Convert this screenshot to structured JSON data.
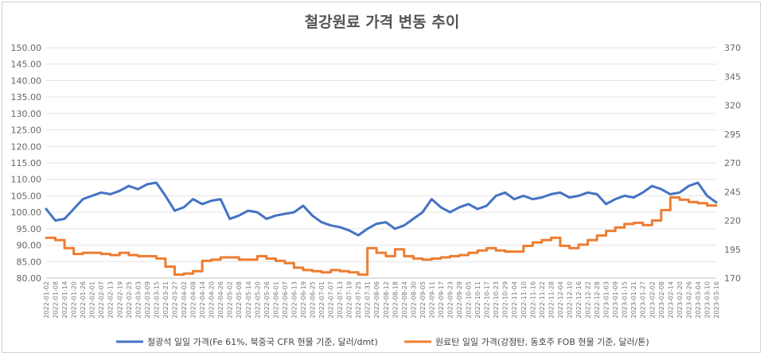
{
  "chart_data": {
    "type": "line",
    "title": "철강원료 가격 변동 추이",
    "y_left": {
      "min": 80,
      "max": 150,
      "step": 5,
      "ticks": [
        "80.00",
        "85.00",
        "90.00",
        "95.00",
        "100.00",
        "105.00",
        "110.00",
        "115.00",
        "120.00",
        "125.00",
        "130.00",
        "135.00",
        "140.00",
        "145.00",
        "150.00"
      ]
    },
    "y_right": {
      "min": 170,
      "max": 370,
      "step": 25,
      "ticks": [
        "170",
        "195",
        "220",
        "245",
        "270",
        "295",
        "320",
        "345",
        "370"
      ]
    },
    "x": [
      "2022-01-02",
      "2022-01-08",
      "2022-01-14",
      "2022-01-20",
      "2022-01-26",
      "2022-02-01",
      "2022-02-07",
      "2022-02-13",
      "2022-02-19",
      "2022-02-25",
      "2022-03-03",
      "2022-03-09",
      "2022-03-15",
      "2022-03-21",
      "2022-03-27",
      "2022-04-02",
      "2022-04-08",
      "2022-04-14",
      "2022-04-20",
      "2022-04-26",
      "2022-05-02",
      "2022-05-08",
      "2022-05-14",
      "2022-05-20",
      "2022-05-26",
      "2022-06-01",
      "2022-06-07",
      "2022-06-13",
      "2022-06-19",
      "2022-06-25",
      "2022-07-01",
      "2022-07-07",
      "2022-07-13",
      "2022-07-19",
      "2022-07-25",
      "2022-07-31",
      "2022-08-06",
      "2022-08-12",
      "2022-08-18",
      "2022-08-24",
      "2022-08-30",
      "2022-09-05",
      "2022-09-11",
      "2022-09-17",
      "2022-09-23",
      "2022-09-29",
      "2022-10-05",
      "2022-10-11",
      "2022-10-17",
      "2022-10-23",
      "2022-10-29",
      "2022-11-04",
      "2022-11-10",
      "2022-11-16",
      "2022-11-22",
      "2022-11-28",
      "2022-12-04",
      "2022-12-10",
      "2022-12-16",
      "2022-12-22",
      "2022-12-28",
      "2023-01-03",
      "2023-01-09",
      "2023-01-15",
      "2023-01-21",
      "2023-01-27",
      "2023-02-02",
      "2023-02-08",
      "2023-02-14",
      "2023-02-20",
      "2023-02-26",
      "2023-03-04",
      "2023-03-10",
      "2023-03-16"
    ],
    "series": [
      {
        "name": "철광석 일일 가격(Fe 61%, 북중국 CFR 현물 기준, 달러/dmt)",
        "axis": "left",
        "color": "#4472C4",
        "values": [
          101,
          97.5,
          98,
          101,
          104,
          105,
          106,
          105.5,
          106.5,
          108,
          107,
          108.5,
          109,
          105,
          100.5,
          101.5,
          104,
          102.5,
          103.5,
          104,
          98,
          99,
          100.5,
          100,
          98,
          99,
          99.5,
          100,
          102,
          99,
          97,
          96,
          95.5,
          94.5,
          93,
          95,
          96.5,
          97,
          95,
          96,
          98,
          100,
          104,
          101.5,
          100,
          101.5,
          102.5,
          101,
          102,
          105,
          106,
          104,
          105,
          104,
          104.5,
          105.5,
          106,
          104.5,
          105,
          106,
          105.5,
          102.5,
          104,
          105,
          104.5,
          106,
          108,
          107,
          105.5,
          106,
          108,
          109,
          105,
          103
        ]
      },
      {
        "name": "원료탄 일일 가격(강점탄, 동호주 FOB 현물 기준, 달러/톤)",
        "axis": "right",
        "color": "#ED7D31",
        "values": [
          205,
          203,
          196,
          191,
          192,
          192,
          191,
          190,
          192,
          190,
          189,
          189,
          187,
          180,
          173,
          174,
          176,
          185,
          186,
          188,
          188,
          186,
          186,
          189,
          187,
          185,
          183,
          179,
          177,
          176,
          175,
          177,
          176,
          175,
          173,
          196,
          192,
          189,
          195,
          189,
          187,
          186,
          187,
          188,
          189,
          190,
          192,
          194,
          196,
          194,
          193,
          193,
          198,
          201,
          203,
          205,
          198,
          196,
          199,
          203,
          207,
          211,
          214,
          217,
          218,
          216,
          220,
          229,
          240,
          238,
          236,
          235,
          233,
          233
        ]
      }
    ]
  }
}
